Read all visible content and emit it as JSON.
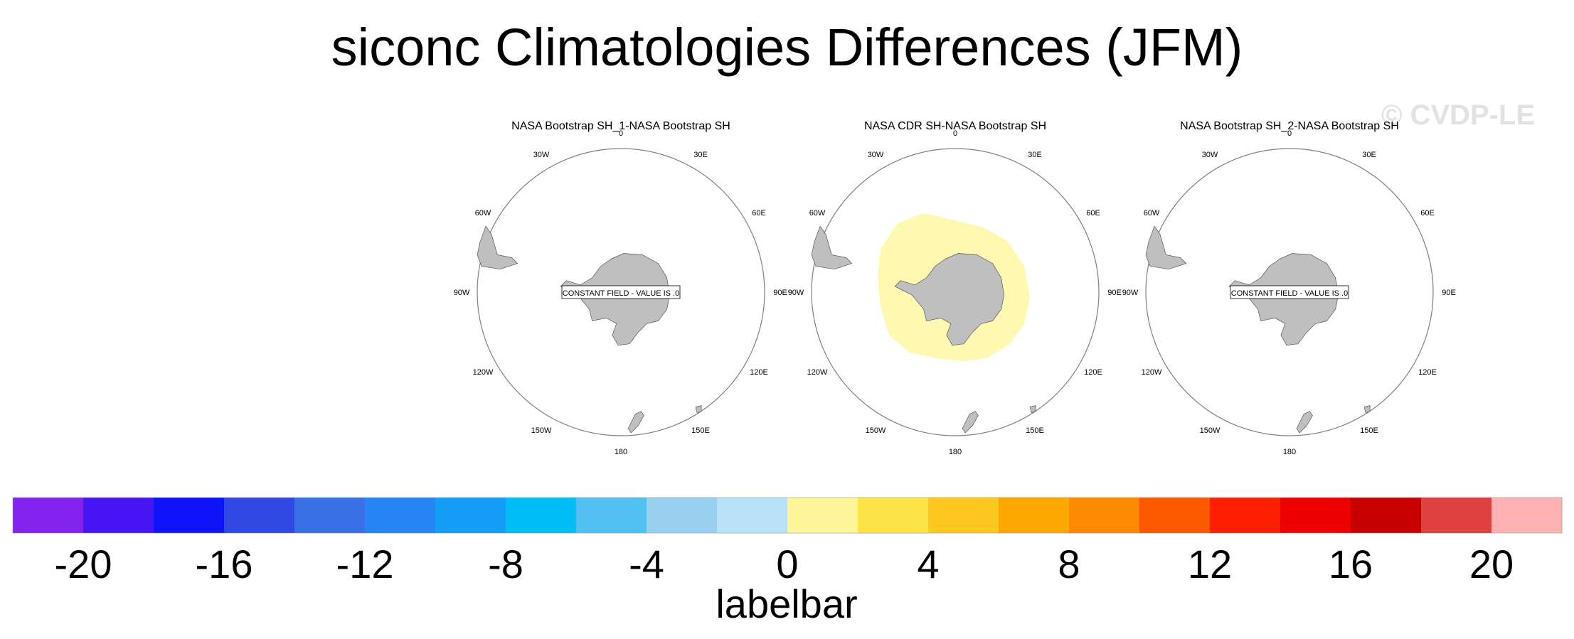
{
  "title": "siconc Climatologies Differences (JFM)",
  "watermark": "© CVDP-LE",
  "panels": [
    {
      "subtitle": "NASA Bootstrap SH_1-NASA Bootstrap SH",
      "message": "CONSTANT FIELD - VALUE IS .0",
      "anomaly": false
    },
    {
      "subtitle": "NASA CDR SH-NASA Bootstrap SH",
      "message": "",
      "anomaly": true
    },
    {
      "subtitle": "NASA Bootstrap SH_2-NASA Bootstrap SH",
      "message": "CONSTANT FIELD - VALUE IS .0",
      "anomaly": false
    }
  ],
  "longitude_labels": [
    "0",
    "30E",
    "60E",
    "90E",
    "120E",
    "150E",
    "180",
    "150W",
    "120W",
    "90W",
    "60W",
    "30W"
  ],
  "colorbar": {
    "title": "labelbar",
    "tick_labels": [
      "-20",
      "-16",
      "-12",
      "-8",
      "-4",
      "0",
      "4",
      "8",
      "12",
      "16",
      "20"
    ],
    "colors": [
      "#8323ee",
      "#4815f4",
      "#0f13f7",
      "#2f48e4",
      "#3a70e6",
      "#2684f5",
      "#159ef8",
      "#00bff6",
      "#53c2f2",
      "#99d0ef",
      "#b8e1f5",
      "#fdf597",
      "#fde547",
      "#fdc820",
      "#fda800",
      "#fd8a00",
      "#fd5a00",
      "#fd2000",
      "#ee0000",
      "#c90000",
      "#de4040",
      "#ffb2b2"
    ],
    "anomaly_color": "#fff8b0",
    "land_color": "#bfbfbf"
  }
}
